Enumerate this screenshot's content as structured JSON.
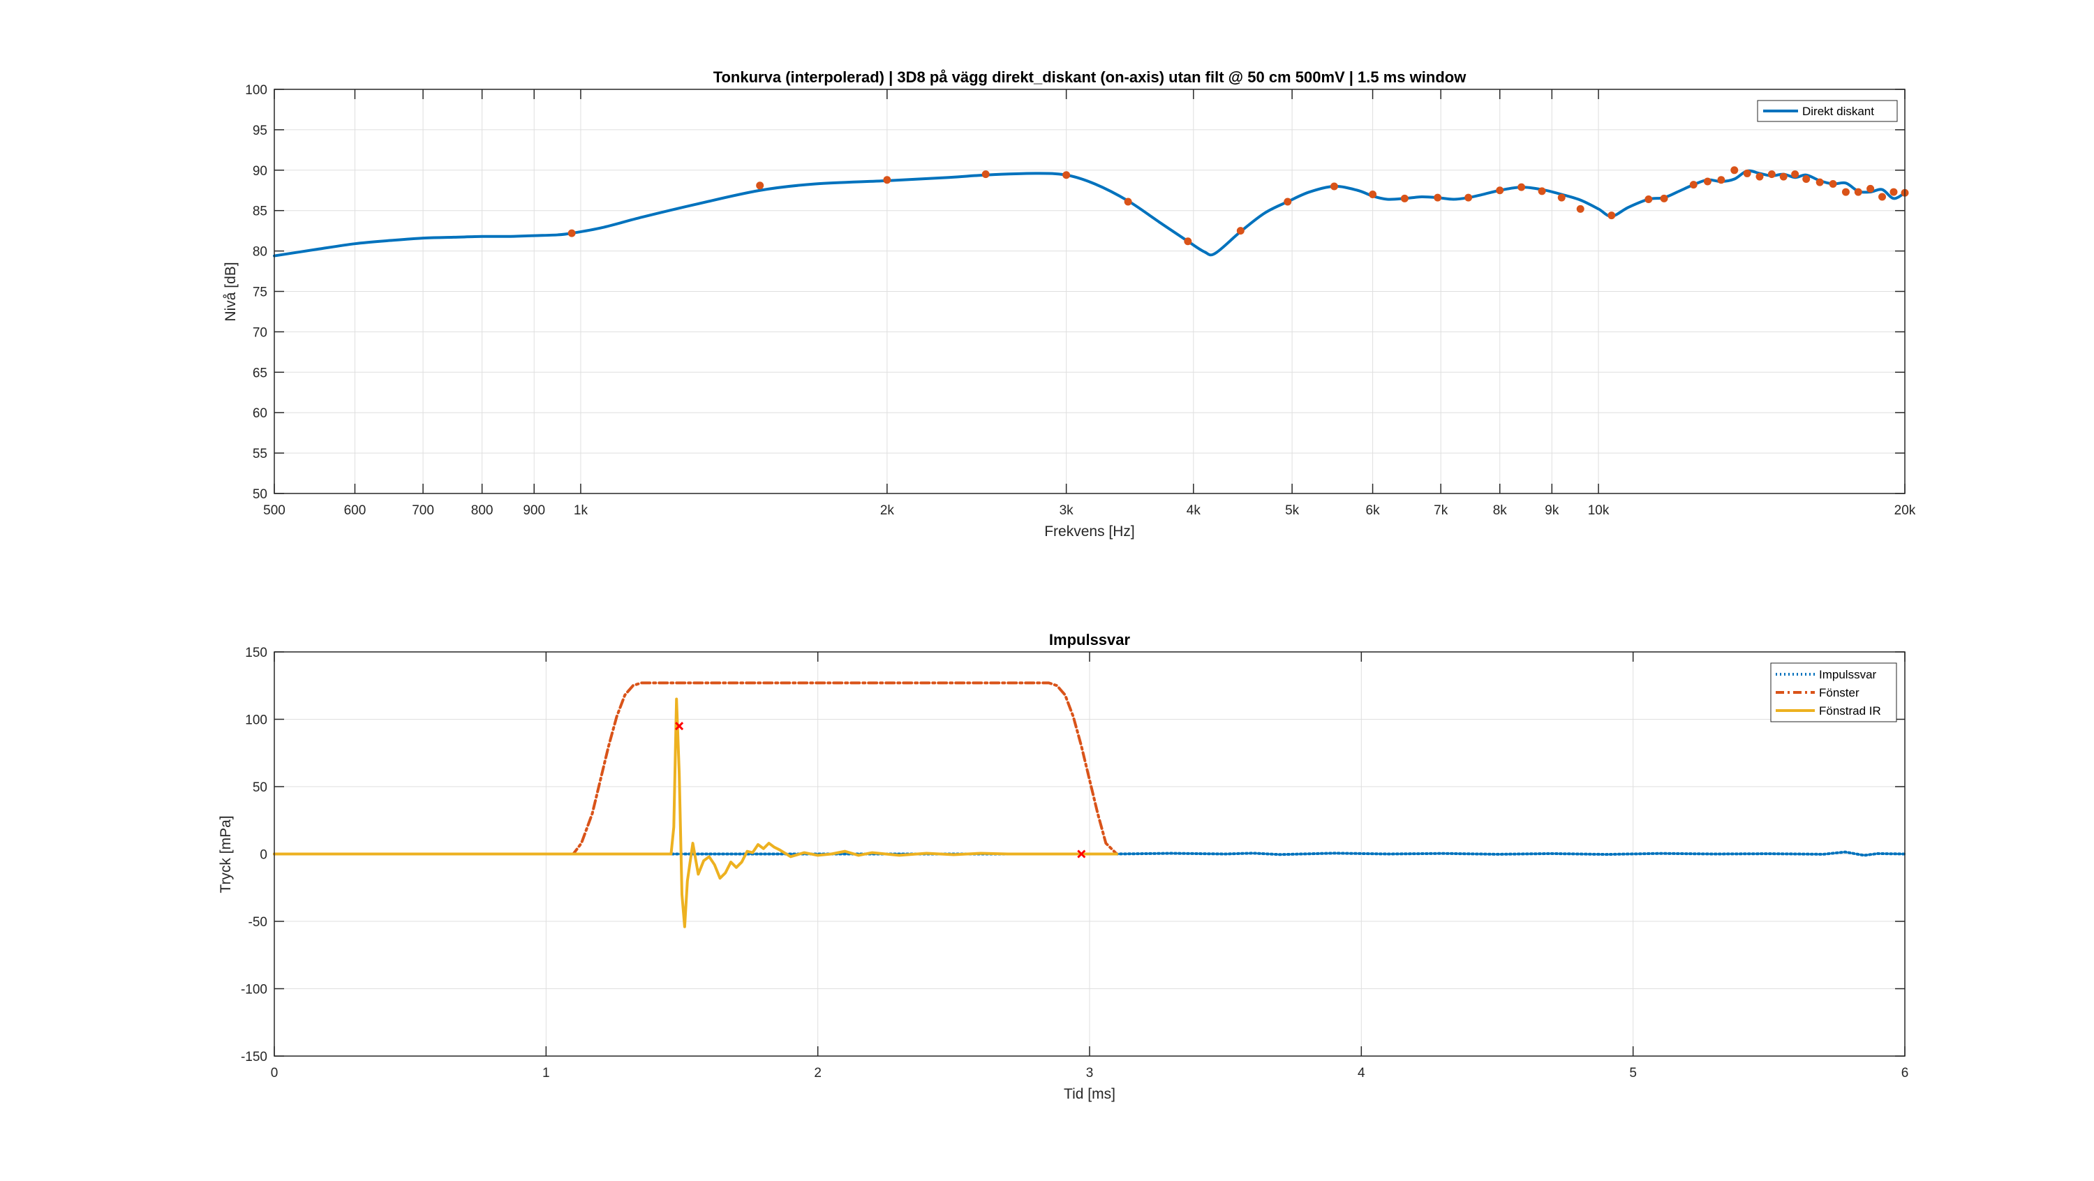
{
  "chart_data": [
    {
      "type": "line",
      "title": "Tonkurva (interpolerad) | 3D8 på vägg direkt_diskant (on-axis) utan filt @ 50 cm 500mV | 1.5 ms window",
      "xlabel": "Frekvens [Hz]",
      "ylabel": "Nivå [dB]",
      "xscale": "log",
      "xlim": [
        500,
        20000
      ],
      "ylim": [
        50,
        100
      ],
      "grid": true,
      "legend_position": "top-right",
      "x_ticks": [
        500,
        600,
        700,
        800,
        900,
        1000,
        2000,
        3000,
        4000,
        5000,
        6000,
        7000,
        8000,
        9000,
        10000,
        20000
      ],
      "x_tick_labels": [
        "500",
        "600",
        "700",
        "800",
        "900",
        "1k",
        "2k",
        "3k",
        "4k",
        "5k",
        "6k",
        "7k",
        "8k",
        "9k",
        "10k",
        "20k"
      ],
      "y_ticks": [
        50,
        55,
        60,
        65,
        70,
        75,
        80,
        85,
        90,
        95,
        100
      ],
      "y_tick_labels": [
        "50",
        "55",
        "60",
        "65",
        "70",
        "75",
        "80",
        "85",
        "90",
        "95",
        "100"
      ],
      "series": [
        {
          "name": "Direkt diskant",
          "color": "#0072BD",
          "style": "solid",
          "x": [
            500,
            550,
            600,
            650,
            700,
            750,
            800,
            850,
            900,
            950,
            980,
            1050,
            1150,
            1300,
            1500,
            1700,
            2000,
            2300,
            2500,
            2800,
            3000,
            3200,
            3450,
            3700,
            3950,
            4100,
            4200,
            4450,
            4700,
            4950,
            5200,
            5500,
            5800,
            6000,
            6200,
            6450,
            6700,
            6950,
            7200,
            7450,
            7700,
            8000,
            8400,
            8800,
            9200,
            9600,
            10000,
            10300,
            10700,
            11200,
            11600,
            12000,
            12400,
            12800,
            13200,
            13600,
            14000,
            14400,
            14800,
            15200,
            15600,
            16000,
            16500,
            17000,
            17500,
            18000,
            18500,
            19000,
            19500,
            20000
          ],
          "values": [
            79.4,
            80.2,
            80.9,
            81.3,
            81.6,
            81.7,
            81.8,
            81.8,
            81.9,
            82.0,
            82.2,
            82.9,
            84.2,
            85.8,
            87.5,
            88.3,
            88.7,
            89.1,
            89.4,
            89.6,
            89.4,
            88.3,
            86.2,
            83.6,
            81.2,
            79.9,
            79.7,
            82.4,
            84.7,
            86.1,
            87.3,
            88.0,
            87.5,
            86.8,
            86.4,
            86.5,
            86.7,
            86.6,
            86.4,
            86.6,
            87.0,
            87.5,
            87.9,
            87.6,
            87.0,
            86.3,
            85.2,
            84.3,
            85.4,
            86.4,
            86.6,
            87.4,
            88.2,
            88.8,
            88.6,
            88.9,
            89.9,
            89.6,
            89.3,
            89.5,
            89.1,
            89.4,
            88.7,
            88.3,
            88.4,
            87.4,
            87.3,
            87.6,
            86.5,
            87.2
          ]
        }
      ],
      "markers": {
        "color": "#D95319",
        "x": [
          980,
          1500,
          2000,
          2500,
          3000,
          3450,
          3950,
          4450,
          4950,
          5500,
          6000,
          6450,
          6950,
          7450,
          8000,
          8400,
          8800,
          9200,
          9600,
          10300,
          11200,
          11600,
          12400,
          12800,
          13200,
          13600,
          14000,
          14400,
          14800,
          15200,
          15600,
          16000,
          16500,
          17000,
          17500,
          18000,
          18500,
          19000,
          19500,
          20000
        ],
        "values": [
          82.2,
          88.1,
          88.8,
          89.5,
          89.4,
          86.1,
          81.2,
          82.5,
          86.1,
          88.0,
          87.0,
          86.5,
          86.6,
          86.6,
          87.5,
          87.9,
          87.4,
          86.6,
          85.2,
          84.4,
          86.4,
          86.5,
          88.2,
          88.6,
          88.8,
          90.0,
          89.6,
          89.2,
          89.5,
          89.2,
          89.5,
          88.9,
          88.5,
          88.3,
          87.3,
          87.3,
          87.7,
          86.7,
          87.3,
          87.2
        ]
      }
    },
    {
      "type": "line",
      "title": "Impulssvar",
      "xlabel": "Tid [ms]",
      "ylabel": "Tryck [mPa]",
      "xlim": [
        0,
        6
      ],
      "ylim": [
        -150,
        150
      ],
      "grid": true,
      "legend_position": "top-right",
      "x_ticks": [
        0,
        1,
        2,
        3,
        4,
        5,
        6
      ],
      "x_tick_labels": [
        "0",
        "1",
        "2",
        "3",
        "4",
        "5",
        "6"
      ],
      "y_ticks": [
        -150,
        -100,
        -50,
        0,
        50,
        100,
        150
      ],
      "y_tick_labels": [
        "-150",
        "-100",
        "-50",
        "0",
        "50",
        "100",
        "150"
      ],
      "series": [
        {
          "name": "Impulssvar",
          "color": "#0072BD",
          "style": "dotted",
          "x": [
            0,
            0.5,
            1.0,
            1.5,
            2.0,
            2.5,
            3.0,
            3.1,
            3.3,
            3.5,
            3.6,
            3.7,
            3.9,
            4.1,
            4.3,
            4.5,
            4.7,
            4.9,
            5.1,
            5.3,
            5.5,
            5.7,
            5.78,
            5.85,
            5.9,
            6.0
          ],
          "values": [
            0,
            0,
            0,
            0,
            0,
            0,
            0,
            0,
            0.5,
            0,
            0.6,
            -0.4,
            0.6,
            0,
            0.4,
            -0.2,
            0.3,
            -0.3,
            0.4,
            0,
            0.2,
            -0.2,
            1.5,
            -1.0,
            0.3,
            0
          ]
        },
        {
          "name": "Fönster",
          "color": "#D95319",
          "style": "dashdot",
          "x": [
            0,
            1.1,
            1.13,
            1.17,
            1.2,
            1.23,
            1.26,
            1.29,
            1.32,
            1.35,
            2.85,
            2.88,
            2.91,
            2.94,
            2.97,
            3.0,
            3.03,
            3.06,
            3.1
          ],
          "values": [
            0,
            0,
            8,
            30,
            55,
            80,
            102,
            118,
            125,
            127,
            127,
            125,
            118,
            102,
            80,
            55,
            30,
            8,
            0
          ]
        },
        {
          "name": "Fönstrad IR",
          "color": "#EDB120",
          "style": "solid",
          "x": [
            0,
            1.46,
            1.47,
            1.48,
            1.49,
            1.5,
            1.51,
            1.52,
            1.54,
            1.56,
            1.58,
            1.6,
            1.62,
            1.64,
            1.66,
            1.68,
            1.7,
            1.72,
            1.74,
            1.76,
            1.78,
            1.8,
            1.82,
            1.84,
            1.86,
            1.9,
            1.95,
            2.0,
            2.05,
            2.1,
            2.15,
            2.2,
            2.25,
            2.3,
            2.4,
            2.5,
            2.6,
            2.7,
            2.8,
            2.9,
            3.0,
            3.1
          ],
          "values": [
            0,
            0,
            20,
            115,
            60,
            -30,
            -54,
            -20,
            8,
            -15,
            -5,
            -2,
            -8,
            -18,
            -14,
            -6,
            -10,
            -6,
            2,
            1,
            7,
            4,
            8,
            5,
            3,
            -2,
            1,
            -1,
            0,
            2,
            -1,
            1,
            0,
            -1,
            0.5,
            -0.5,
            0.5,
            0,
            0,
            0,
            0,
            0
          ]
        }
      ],
      "markers": {
        "color": "#FF0000",
        "shape": "x",
        "x": [
          1.49,
          2.97
        ],
        "values": [
          95,
          0
        ]
      }
    }
  ]
}
